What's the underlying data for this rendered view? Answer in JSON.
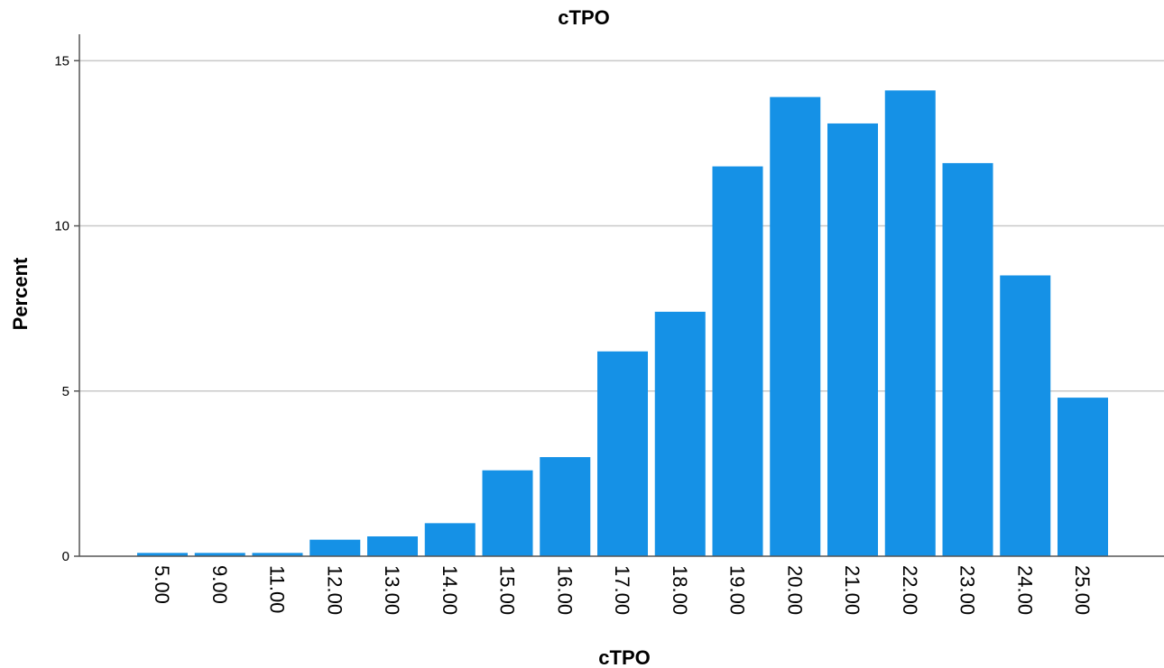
{
  "chart_data": {
    "type": "bar",
    "title": "cTPO",
    "xlabel": "cTPO",
    "ylabel": "Percent",
    "categories": [
      "5.00",
      "9.00",
      "11.00",
      "12.00",
      "13.00",
      "14.00",
      "15.00",
      "16.00",
      "17.00",
      "18.00",
      "19.00",
      "20.00",
      "21.00",
      "22.00",
      "23.00",
      "24.00",
      "25.00"
    ],
    "values": [
      0.1,
      0.1,
      0.1,
      0.5,
      0.6,
      1.0,
      2.6,
      3.0,
      6.2,
      7.4,
      11.8,
      13.9,
      13.1,
      14.1,
      11.9,
      8.5,
      4.8
    ],
    "yticks": [
      0,
      5,
      10,
      15
    ],
    "ylim": [
      0,
      15.8
    ],
    "grid": true,
    "bar_color": "#1591e6"
  }
}
